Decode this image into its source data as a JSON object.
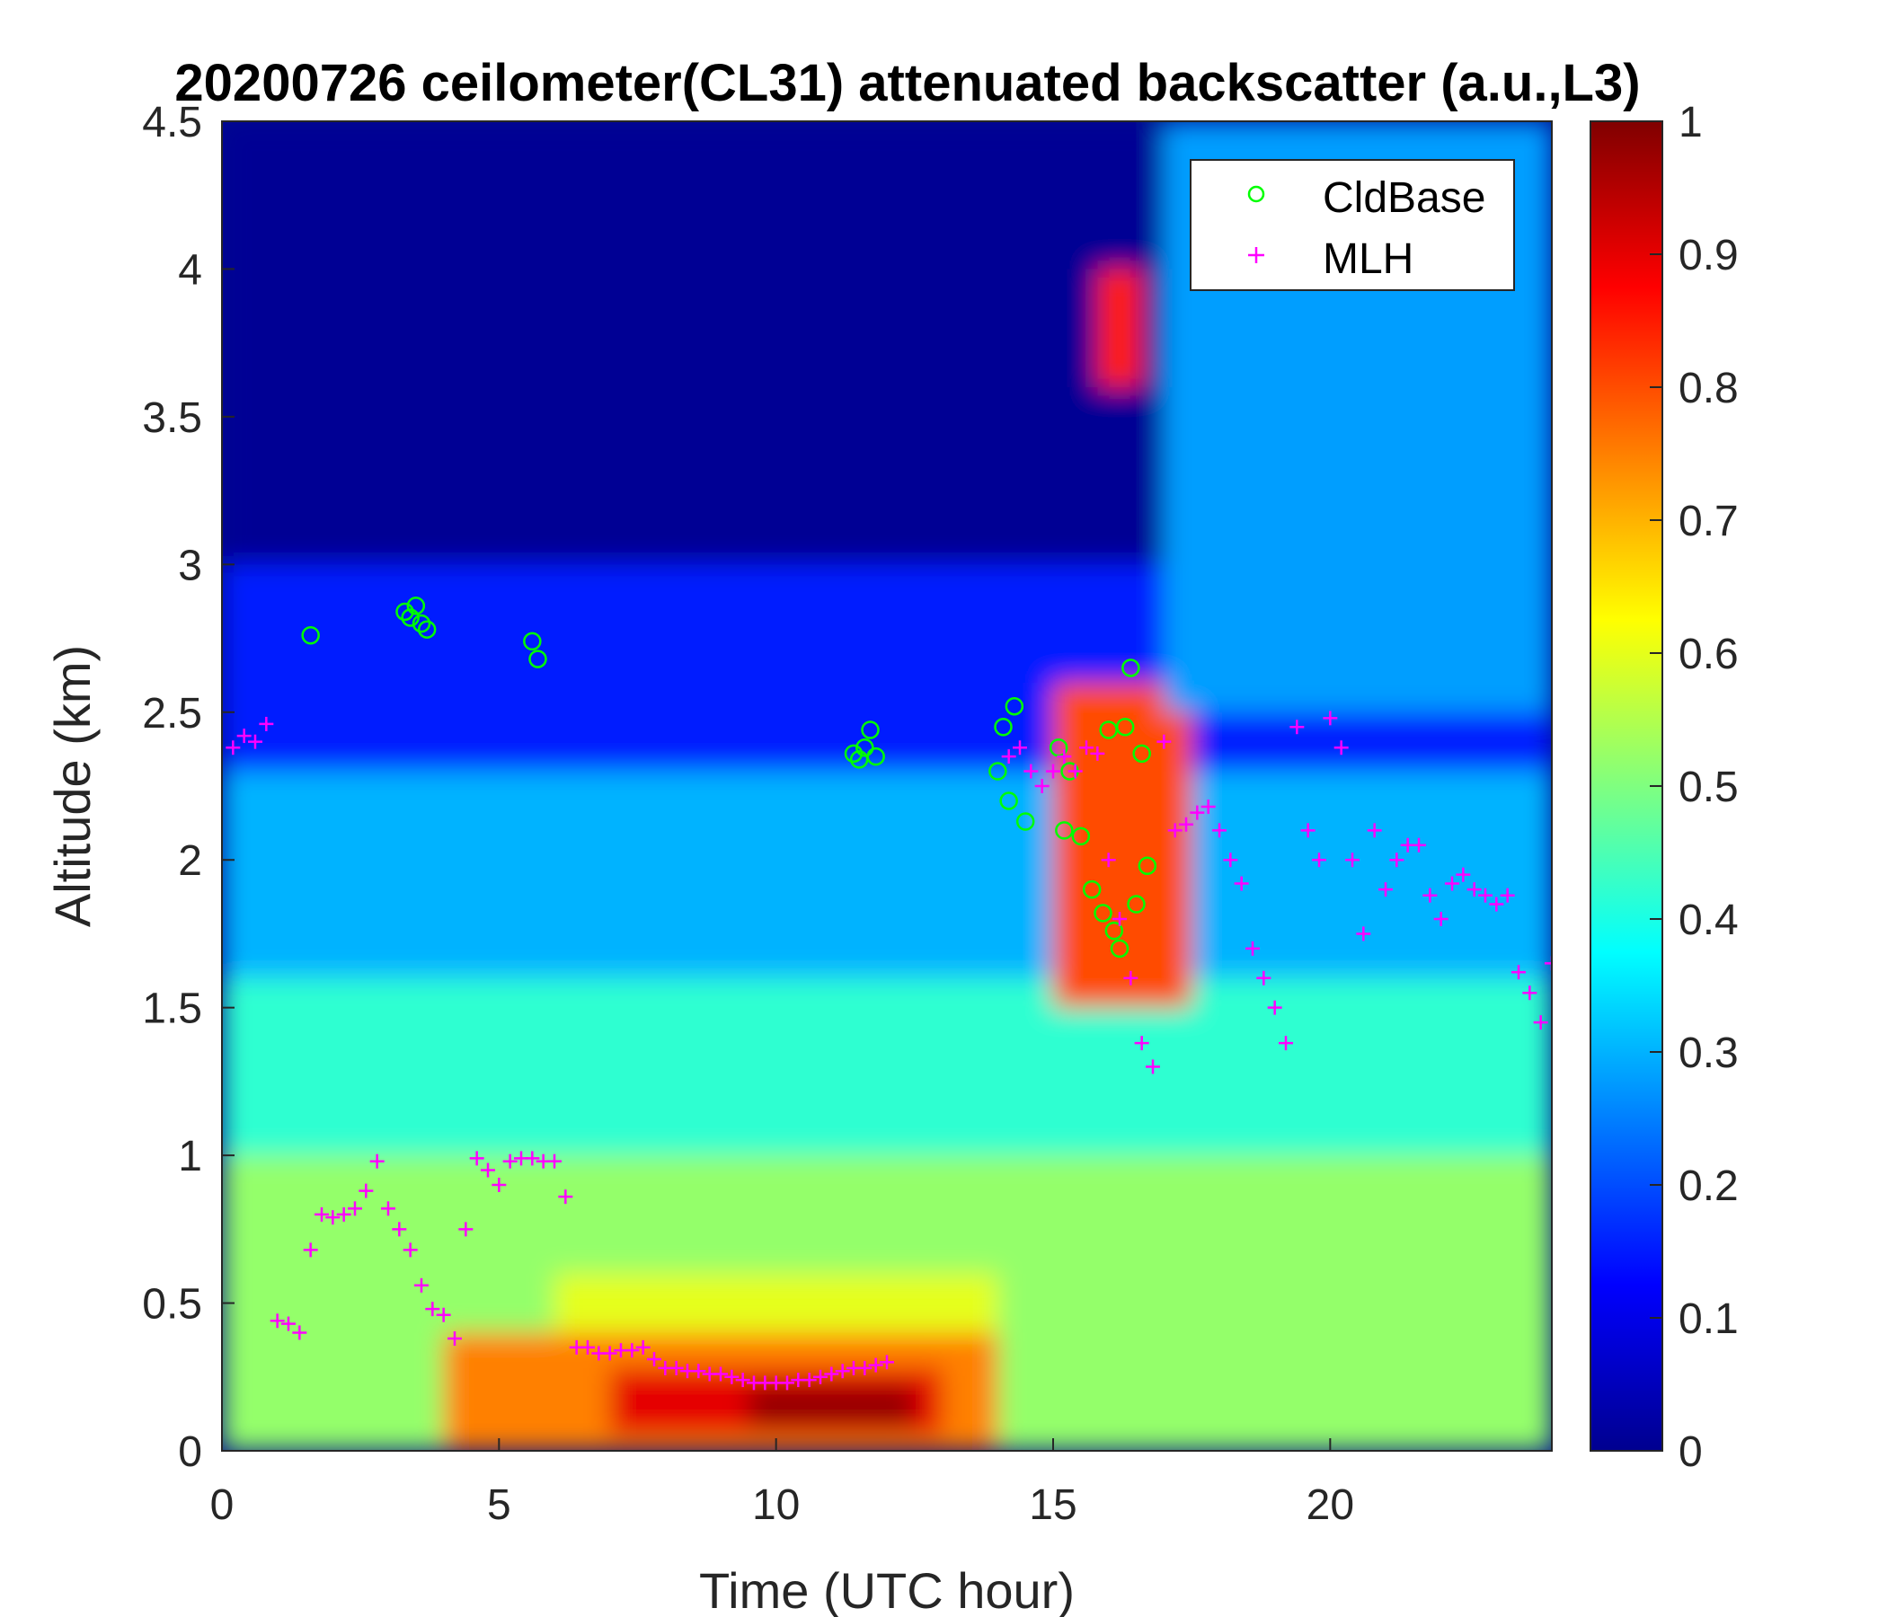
{
  "chart_data": {
    "type": "heatmap",
    "title": "20200726 ceilometer(CL31) attenuated backscatter (a.u.,L3)",
    "xlabel": "Time (UTC hour)",
    "ylabel": "Altitude (km)",
    "xlim": [
      0,
      24
    ],
    "ylim": [
      0,
      4.5
    ],
    "x_ticks": [
      "0",
      "5",
      "10",
      "15",
      "20"
    ],
    "y_ticks": [
      "0",
      "0.5",
      "1",
      "1.5",
      "2",
      "2.5",
      "3",
      "3.5",
      "4",
      "4.5"
    ],
    "colorbar": {
      "colormap": "jet",
      "clim": [
        0,
        1
      ],
      "ticks": [
        "0",
        "0.1",
        "0.2",
        "0.3",
        "0.4",
        "0.5",
        "0.6",
        "0.7",
        "0.8",
        "0.9",
        "1"
      ]
    },
    "legend": {
      "location": "top-right",
      "entries": [
        {
          "label": "CldBase",
          "marker": "circle",
          "color": "#00ff00"
        },
        {
          "label": "MLH",
          "marker": "plus",
          "color": "#ff00ff"
        }
      ]
    },
    "backscatter_regions": [
      {
        "t": [
          0,
          24
        ],
        "z": [
          0,
          4.5
        ],
        "value": 0.02
      },
      {
        "t": [
          0,
          24
        ],
        "z": [
          0,
          3.0
        ],
        "value": 0.15
      },
      {
        "t": [
          0,
          24
        ],
        "z": [
          0,
          2.3
        ],
        "value": 0.3
      },
      {
        "t": [
          0,
          24
        ],
        "z": [
          0,
          1.6
        ],
        "value": 0.42
      },
      {
        "t": [
          0,
          24
        ],
        "z": [
          0,
          1.0
        ],
        "value": 0.52
      },
      {
        "t": [
          6,
          14
        ],
        "z": [
          0,
          0.6
        ],
        "value": 0.6
      },
      {
        "t": [
          4,
          14
        ],
        "z": [
          0,
          0.4
        ],
        "value": 0.75
      },
      {
        "t": [
          7,
          13
        ],
        "z": [
          0.05,
          0.28
        ],
        "value": 0.9
      },
      {
        "t": [
          9.5,
          12.5
        ],
        "z": [
          0.08,
          0.22
        ],
        "value": 0.98
      },
      {
        "t": [
          15,
          17.5
        ],
        "z": [
          1.5,
          2.6
        ],
        "value": 0.8
      },
      {
        "t": [
          15.8,
          16.6
        ],
        "z": [
          3.6,
          4.0
        ],
        "value": 0.85
      },
      {
        "t": [
          17,
          24
        ],
        "z": [
          2.5,
          4.5
        ],
        "value": 0.28
      }
    ],
    "series": [
      {
        "name": "CldBase",
        "x": [
          1.6,
          3.3,
          3.4,
          3.5,
          3.6,
          3.7,
          5.6,
          5.7,
          11.4,
          11.5,
          11.6,
          11.7,
          11.8,
          14.0,
          14.1,
          14.2,
          14.3,
          14.5,
          15.1,
          15.2,
          15.3,
          15.5,
          15.7,
          15.9,
          16.0,
          16.1,
          16.2,
          16.3,
          16.4,
          16.5,
          16.6,
          16.7
        ],
        "y": [
          2.76,
          2.84,
          2.82,
          2.86,
          2.8,
          2.78,
          2.74,
          2.68,
          2.36,
          2.34,
          2.38,
          2.44,
          2.35,
          2.3,
          2.45,
          2.2,
          2.52,
          2.13,
          2.38,
          2.1,
          2.3,
          2.08,
          1.9,
          1.82,
          2.44,
          1.76,
          1.7,
          2.45,
          2.65,
          1.85,
          2.36,
          1.98
        ]
      },
      {
        "name": "MLH",
        "x": [
          0.2,
          0.4,
          0.6,
          0.8,
          1.0,
          1.2,
          1.4,
          1.6,
          1.8,
          2.0,
          2.2,
          2.4,
          2.6,
          2.8,
          3.0,
          3.2,
          3.4,
          3.6,
          3.8,
          4.0,
          4.2,
          4.4,
          4.6,
          4.8,
          5.0,
          5.2,
          5.4,
          5.6,
          5.8,
          6.0,
          6.2,
          6.4,
          6.6,
          6.8,
          7.0,
          7.2,
          7.4,
          7.6,
          7.8,
          8.0,
          8.2,
          8.4,
          8.6,
          8.8,
          9.0,
          9.2,
          9.4,
          9.6,
          9.8,
          10.0,
          10.2,
          10.4,
          10.6,
          10.8,
          11.0,
          11.2,
          11.4,
          11.6,
          11.8,
          12.0,
          14.2,
          14.4,
          14.6,
          14.8,
          15.0,
          15.2,
          15.4,
          15.6,
          15.8,
          16.0,
          16.2,
          16.4,
          16.6,
          16.8,
          17.0,
          17.2,
          17.4,
          17.6,
          17.8,
          18.0,
          18.2,
          18.4,
          18.6,
          18.8,
          19.0,
          19.2,
          19.4,
          19.6,
          19.8,
          20.0,
          20.2,
          20.4,
          20.6,
          20.8,
          21.0,
          21.2,
          21.4,
          21.6,
          21.8,
          22.0,
          22.2,
          22.4,
          22.6,
          22.8,
          23.0,
          23.2,
          23.4,
          23.6,
          23.8,
          24.0
        ],
        "y": [
          2.38,
          2.42,
          2.4,
          2.46,
          0.44,
          0.43,
          0.4,
          0.68,
          0.8,
          0.79,
          0.8,
          0.82,
          0.88,
          0.98,
          0.82,
          0.75,
          0.68,
          0.56,
          0.48,
          0.46,
          0.38,
          0.75,
          0.99,
          0.95,
          0.9,
          0.98,
          0.99,
          0.99,
          0.98,
          0.98,
          0.86,
          0.35,
          0.35,
          0.33,
          0.33,
          0.34,
          0.34,
          0.35,
          0.31,
          0.28,
          0.28,
          0.27,
          0.27,
          0.26,
          0.26,
          0.25,
          0.24,
          0.23,
          0.23,
          0.23,
          0.23,
          0.24,
          0.24,
          0.25,
          0.26,
          0.27,
          0.28,
          0.28,
          0.29,
          0.3,
          2.35,
          2.38,
          2.3,
          2.25,
          2.3,
          2.35,
          2.3,
          2.38,
          2.36,
          2.0,
          1.8,
          1.6,
          1.38,
          1.3,
          2.4,
          2.1,
          2.12,
          2.16,
          2.18,
          2.1,
          2.0,
          1.92,
          1.7,
          1.6,
          1.5,
          1.38,
          2.45,
          2.1,
          2.0,
          2.48,
          2.38,
          2.0,
          1.75,
          2.1,
          1.9,
          2.0,
          2.05,
          2.05,
          1.88,
          1.8,
          1.92,
          1.95,
          1.9,
          1.88,
          1.85,
          1.88,
          1.62,
          1.55,
          1.45,
          1.65
        ]
      }
    ]
  }
}
